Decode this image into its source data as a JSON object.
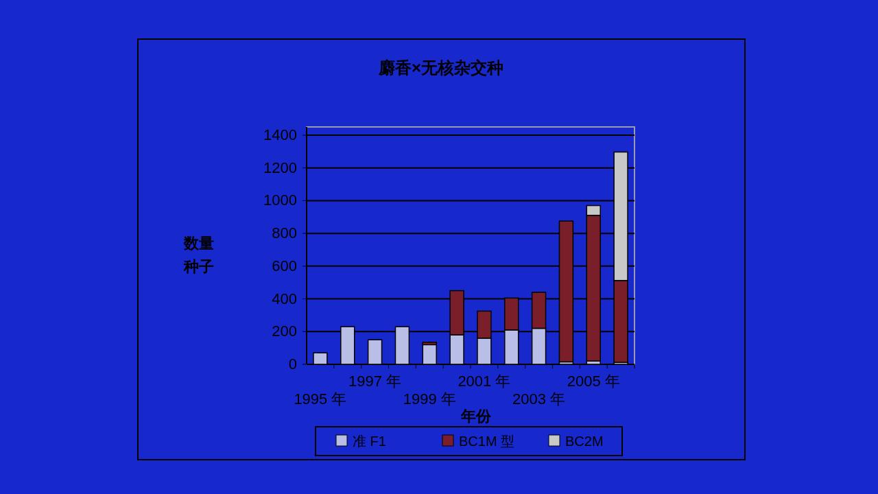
{
  "chart_data": {
    "type": "bar",
    "title": "麝香×无核杂交种",
    "xlabel": "年份",
    "ylabel": "数量种子",
    "categories": [
      "1995 年",
      null,
      "1997 年",
      null,
      "1999 年",
      null,
      "2001 年",
      null,
      "2003 年",
      null,
      "2005 年",
      null
    ],
    "stacked": true,
    "series": [
      {
        "name": "准 F1",
        "color": "#b8bee6",
        "values": [
          70,
          230,
          150,
          230,
          120,
          180,
          160,
          210,
          220,
          15,
          20,
          12
        ]
      },
      {
        "name": "BC1M 型",
        "color": "#7a1f2a",
        "values": [
          null,
          null,
          null,
          null,
          15,
          270,
          165,
          195,
          220,
          860,
          890,
          500
        ]
      },
      {
        "name": "BC2M",
        "color": "#c8c8c8",
        "values": [
          null,
          null,
          null,
          null,
          null,
          null,
          null,
          null,
          null,
          null,
          60,
          785
        ]
      }
    ],
    "ylim": [
      0,
      1400
    ],
    "yticks": [
      0,
      200,
      400,
      600,
      800,
      1000,
      1200,
      1400
    ],
    "grid": "y",
    "legend": "bottom"
  }
}
